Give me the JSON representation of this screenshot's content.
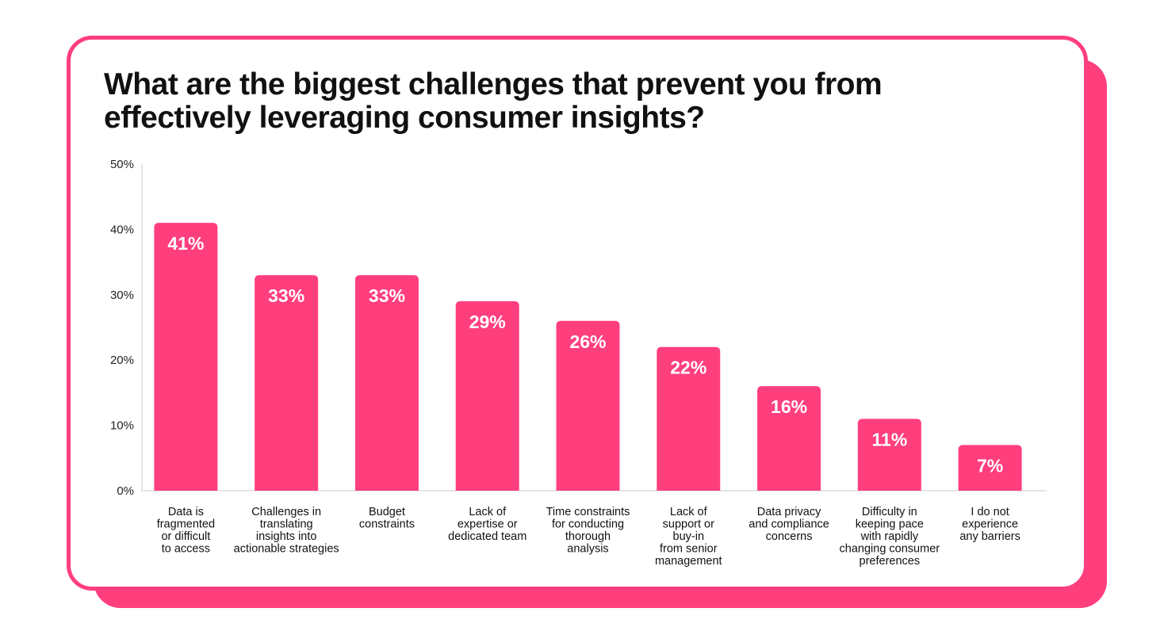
{
  "colors": {
    "accent": "#ff3f7d",
    "text": "#111111",
    "axis": "#cccccc"
  },
  "chart_data": {
    "type": "bar",
    "title": "What are the biggest challenges that prevent you from effectively leveraging consumer insights?",
    "xlabel": "",
    "ylabel": "",
    "ylim": [
      0,
      50
    ],
    "yticks": [
      "0%",
      "10%",
      "20%",
      "30%",
      "40%",
      "50%"
    ],
    "grid": false,
    "categories": [
      [
        "Data is",
        "fragmented",
        "or difficult",
        "to access"
      ],
      [
        "Challenges in",
        "translating",
        "insights into",
        "actionable strategies"
      ],
      [
        "Budget",
        "constraints"
      ],
      [
        "Lack of",
        "expertise or",
        "dedicated team"
      ],
      [
        "Time constraints",
        "for conducting",
        "thorough",
        "analysis"
      ],
      [
        "Lack of",
        "support or",
        "buy-in",
        "from senior",
        "management"
      ],
      [
        "Data privacy",
        "and compliance",
        "concerns"
      ],
      [
        "Difficulty in",
        "keeping pace",
        "with rapidly",
        "changing consumer",
        "preferences"
      ],
      [
        "I do not",
        "experience",
        "any barriers"
      ]
    ],
    "values": [
      41,
      33,
      33,
      29,
      26,
      22,
      16,
      11,
      7
    ],
    "value_labels": [
      "41%",
      "33%",
      "33%",
      "29%",
      "26%",
      "22%",
      "16%",
      "11%",
      "7%"
    ]
  }
}
